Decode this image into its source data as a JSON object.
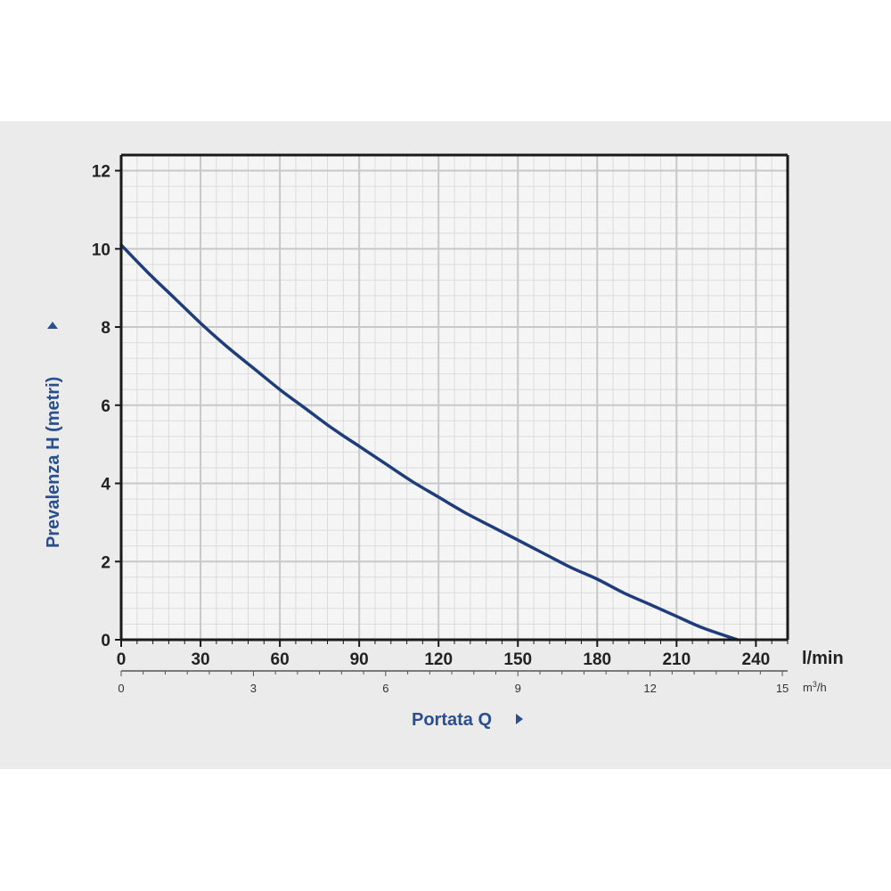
{
  "chart_data": {
    "type": "line",
    "xlabel": "Portata Q",
    "ylabel": "Prevalenza H (metri)",
    "x_unit": "l/min",
    "x2_unit_base": "m",
    "x2_unit_sup": "3",
    "x2_unit_tail": "/h",
    "xlim": [
      0,
      252
    ],
    "ylim": [
      0,
      12.4
    ],
    "x_ticks": [
      0,
      30,
      60,
      90,
      120,
      150,
      180,
      210,
      240
    ],
    "x_tick_labels": [
      "0",
      "30",
      "60",
      "90",
      "120",
      "150",
      "180",
      "210",
      "240"
    ],
    "x2_ticks": [
      0,
      3,
      6,
      9,
      12,
      15
    ],
    "x2_tick_labels": [
      "0",
      "3",
      "6",
      "9",
      "12",
      "15"
    ],
    "y_ticks": [
      0,
      2,
      4,
      6,
      8,
      10,
      12
    ],
    "y_tick_labels": [
      "0",
      "2",
      "4",
      "6",
      "8",
      "10",
      "12"
    ],
    "grid": true,
    "series": [
      {
        "x": [
          0,
          10,
          20,
          30,
          40,
          50,
          60,
          70,
          80,
          90,
          100,
          110,
          120,
          130,
          140,
          150,
          160,
          170,
          180,
          190,
          200,
          210,
          220,
          233
        ],
        "y": [
          10.1,
          9.4,
          8.75,
          8.1,
          7.5,
          6.95,
          6.4,
          5.9,
          5.4,
          4.95,
          4.5,
          4.05,
          3.65,
          3.25,
          2.9,
          2.55,
          2.2,
          1.85,
          1.55,
          1.2,
          0.9,
          0.6,
          0.3,
          0
        ]
      }
    ],
    "colors": {
      "curve": "#1e3d7a",
      "title": "#2a4f8e",
      "grid_major": "#c8c8c8",
      "grid_minor": "#dcdcdc",
      "plot_bg": "#f5f5f5"
    }
  }
}
